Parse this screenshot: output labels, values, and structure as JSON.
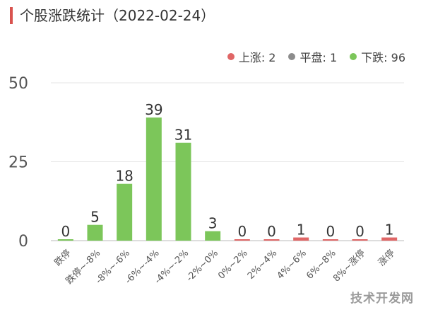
{
  "title": "个股涨跌统计（2022-02-24）",
  "legend": [
    {
      "label": "上涨: 2",
      "color": "#e06666"
    },
    {
      "label": "平盘: 1",
      "color": "#8c8c8c"
    },
    {
      "label": "下跌: 96",
      "color": "#7cc65a"
    }
  ],
  "watermark": "技术开发网",
  "chart_data": {
    "type": "bar",
    "title": "个股涨跌统计（2022-02-24）",
    "categories": [
      "跌停",
      "跌停~-8%",
      "-8%~-6%",
      "-6%~-4%",
      "-4%~-2%",
      "-2%~0%",
      "0%~2%",
      "2%~4%",
      "4%~6%",
      "6%~8%",
      "8%~涨停",
      "涨停"
    ],
    "values": [
      0,
      5,
      18,
      39,
      31,
      3,
      0,
      0,
      1,
      0,
      0,
      1
    ],
    "bar_colors": [
      "#7cc65a",
      "#7cc65a",
      "#7cc65a",
      "#7cc65a",
      "#7cc65a",
      "#7cc65a",
      "#e06666",
      "#e06666",
      "#e06666",
      "#e06666",
      "#e06666",
      "#e06666"
    ],
    "ylim": [
      0,
      50
    ],
    "yticks": [
      0,
      25,
      50
    ],
    "grid": true,
    "legend_position": "top-right"
  }
}
